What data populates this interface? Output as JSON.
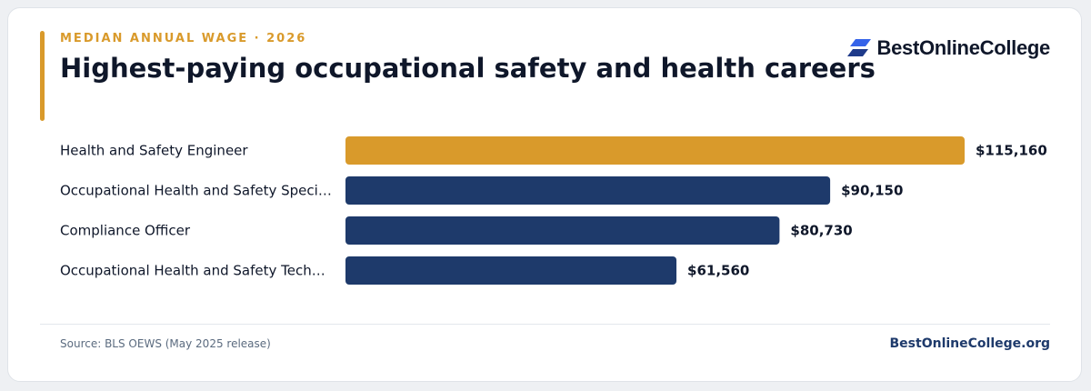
{
  "header": {
    "eyebrow": "MEDIAN ANNUAL WAGE · 2026",
    "title": "Highest-paying occupational safety and health careers"
  },
  "logo": {
    "text": "BestOnlineCollege",
    "icon": "stacked-parallelogram-logo-icon"
  },
  "footer": {
    "source": "Source: BLS OEWS (May 2025 release)",
    "site": "BestOnlineCollege.org"
  },
  "colors": {
    "accent": "#d99a2b",
    "primary": "#1e3a6b",
    "text": "#0f172a",
    "muted": "#5b6b7f"
  },
  "chart_data": {
    "type": "bar",
    "orientation": "horizontal",
    "categories": [
      "Health and Safety Engineer",
      "Occupational Health and Safety Speci…",
      "Compliance Officer",
      "Occupational Health and Safety Tech…"
    ],
    "values": [
      115160,
      90150,
      80730,
      61560
    ],
    "value_labels": [
      "$115,160",
      "$90,150",
      "$80,730",
      "$61,560"
    ],
    "highlight_index": 0,
    "xlim": [
      0,
      115160
    ],
    "grid": false,
    "legend": "none"
  }
}
